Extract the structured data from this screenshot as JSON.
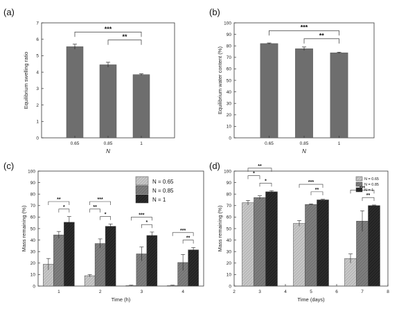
{
  "chart_data": [
    {
      "panel": "(a)",
      "type": "bar",
      "categories": [
        "0.65",
        "0.85",
        "1"
      ],
      "values": [
        5.55,
        4.45,
        3.85
      ],
      "errors": [
        0.15,
        0.15,
        0.05
      ],
      "xlabel": "N",
      "ylabel": "Equilibrium swelling ratio",
      "ylim": [
        0,
        7
      ],
      "yticks": [
        "0",
        "1",
        "2",
        "3",
        "4",
        "5",
        "6",
        "7"
      ],
      "significance": [
        {
          "from": 0,
          "to": 2,
          "label": "***"
        },
        {
          "from": 1,
          "to": 2,
          "label": "**"
        }
      ]
    },
    {
      "panel": "(b)",
      "type": "bar",
      "categories": [
        "0.65",
        "0.85",
        "1"
      ],
      "values": [
        82,
        77.5,
        74
      ],
      "errors": [
        0.5,
        1.5,
        0.5
      ],
      "xlabel": "N",
      "ylabel": "Equilibrium water content (%)",
      "ylim": [
        0,
        100
      ],
      "yticks": [
        "0",
        "10",
        "20",
        "30",
        "40",
        "50",
        "60",
        "70",
        "80",
        "90",
        "100"
      ],
      "significance": [
        {
          "from": 0,
          "to": 2,
          "label": "***"
        },
        {
          "from": 1,
          "to": 2,
          "label": "**"
        }
      ]
    },
    {
      "panel": "(c)",
      "type": "bar",
      "categories": [
        "1",
        "2",
        "3",
        "4"
      ],
      "xlabel": "Time (h)",
      "ylabel": "Mass remaining (%)",
      "ylim": [
        0,
        100
      ],
      "yticks": [
        "0",
        "10",
        "20",
        "30",
        "40",
        "50",
        "60",
        "70",
        "80",
        "90",
        "100"
      ],
      "legend_position": "top-right",
      "series": [
        {
          "name": "N = 0.65",
          "values": [
            19,
            9,
            0.5,
            0.5
          ],
          "errors": [
            5,
            1,
            0.3,
            0.3
          ]
        },
        {
          "name": "N = 0.85",
          "values": [
            44.5,
            37,
            28,
            20.5
          ],
          "errors": [
            3,
            4,
            6,
            7
          ]
        },
        {
          "name": "N = 1",
          "values": [
            55.5,
            52,
            44,
            31.5
          ],
          "errors": [
            5,
            2,
            3,
            2
          ]
        }
      ],
      "significance": [
        {
          "group": 0,
          "labels": [
            "**",
            "*"
          ]
        },
        {
          "group": 1,
          "labels": [
            "***",
            "**",
            "*"
          ]
        },
        {
          "group": 2,
          "labels": [
            "***",
            "*"
          ]
        },
        {
          "group": 3,
          "labels": [
            "***",
            "**"
          ]
        }
      ]
    },
    {
      "panel": "(d)",
      "type": "bar",
      "categories": [
        "3",
        "5",
        "7"
      ],
      "xlabel": "Time (days)",
      "xticks": [
        "2",
        "3",
        "4",
        "5",
        "6",
        "7",
        "8"
      ],
      "ylabel": "Mass remaining (%)",
      "ylim": [
        0,
        100
      ],
      "yticks": [
        "0",
        "10",
        "20",
        "30",
        "40",
        "50",
        "60",
        "70",
        "80",
        "90",
        "100"
      ],
      "legend_position": "top-right",
      "series": [
        {
          "name": "N = 0.65",
          "values": [
            72.5,
            54.5,
            24
          ],
          "errors": [
            2,
            2.5,
            4
          ]
        },
        {
          "name": "N = 0.85",
          "values": [
            77,
            71,
            56.5
          ],
          "errors": [
            1.5,
            0.5,
            9
          ]
        },
        {
          "name": "N = 1",
          "values": [
            82,
            75,
            70
          ],
          "errors": [
            1,
            0.5,
            0.5
          ]
        }
      ],
      "significance": [
        {
          "group": 0,
          "labels": [
            "**",
            "*",
            "*"
          ]
        },
        {
          "group": 1,
          "labels": [
            "***",
            "**"
          ]
        },
        {
          "group": 2,
          "labels": [
            "***",
            "**"
          ]
        }
      ]
    }
  ],
  "colors": {
    "bar_simple": "#6e6e6e",
    "series": [
      "#c8c8c8",
      "#7f7f7f",
      "#2b2b2b"
    ],
    "axis": "#333333"
  }
}
